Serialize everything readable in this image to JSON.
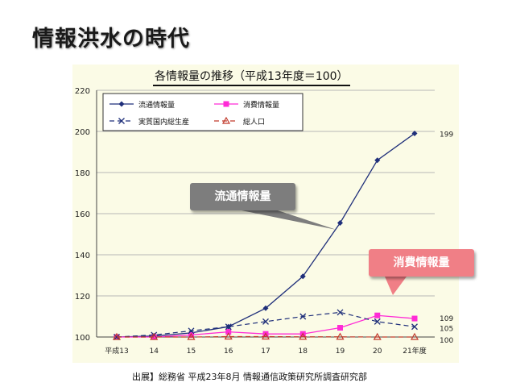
{
  "slide": {
    "title": "情報洪水の時代",
    "source": "出展】総務省 平成23年8月 情報通信政策研究所調査研究部"
  },
  "callouts": {
    "circulation": "流通情報量",
    "consumption": "消費情報量"
  },
  "colors": {
    "circulation": "#1f2f7a",
    "consumption": "#ff2bd6",
    "gdp": "#1f2f7a",
    "population": "#c0392b",
    "plot_bg": "#fbfbe6"
  },
  "chart_data": {
    "type": "line",
    "title": "各情報量の推移（平成13年度＝100）",
    "categories": [
      "平成13",
      "14",
      "15",
      "16",
      "17",
      "18",
      "19",
      "20",
      "21年度"
    ],
    "ylim": [
      100,
      220
    ],
    "yticks": [
      100,
      120,
      140,
      160,
      180,
      200,
      220
    ],
    "grid": true,
    "legend_position": "top-left",
    "series": [
      {
        "name": "流通情報量",
        "values": [
          100,
          100.5,
          102,
          105,
          114,
          129.5,
          155.5,
          186,
          199
        ],
        "end_label": "199"
      },
      {
        "name": "消費情報量",
        "values": [
          100,
          100,
          101,
          102.5,
          101.5,
          101.5,
          104.5,
          110.5,
          109
        ],
        "end_label": "109"
      },
      {
        "name": "実質国内総生産",
        "values": [
          100,
          101,
          103,
          105,
          107.5,
          110,
          112,
          107.5,
          105
        ],
        "end_label": "105"
      },
      {
        "name": "総人口",
        "values": [
          100,
          100,
          100,
          100.2,
          100.2,
          100.1,
          100.1,
          100,
          100
        ],
        "end_label": "100"
      }
    ]
  }
}
